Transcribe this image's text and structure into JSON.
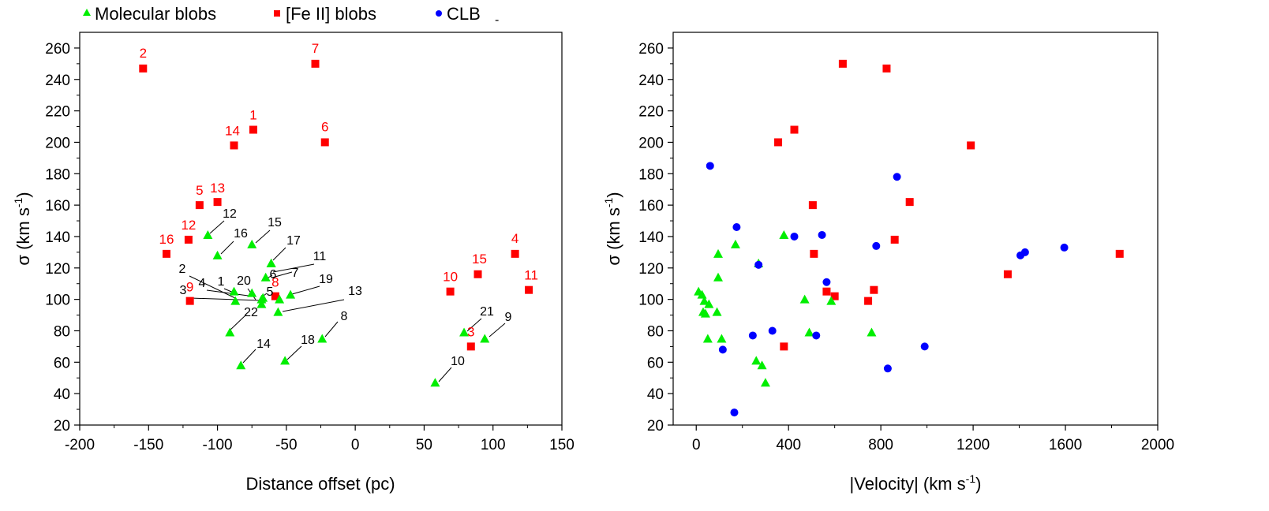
{
  "legend": {
    "molecular": "Molecular blobs",
    "feii": "[Fe II] blobs",
    "clb": "CLB",
    "extra": "-"
  },
  "colors": {
    "molecular": "#00ee00",
    "feii": "#ff0000",
    "clb": "#0000ff",
    "axis": "#000000"
  },
  "chart_data": [
    {
      "type": "scatter",
      "title": "",
      "xlabel": "Distance offset (pc)",
      "ylabel": "σ (km s-1)",
      "ylabel_main": "σ (km s",
      "ylabel_sup": "-1",
      "ylabel_end": ")",
      "xlim": [
        -200,
        150
      ],
      "ylim": [
        20,
        270
      ],
      "xticks": [
        -200,
        -150,
        -100,
        -50,
        0,
        50,
        100,
        150
      ],
      "yticks": [
        20,
        40,
        60,
        80,
        100,
        120,
        140,
        160,
        180,
        200,
        220,
        240,
        260
      ],
      "series": [
        {
          "name": "[Fe II] blobs",
          "marker": "square",
          "points": [
            {
              "x": -74,
              "y": 208,
              "label": "1"
            },
            {
              "x": -154,
              "y": 247,
              "label": "2"
            },
            {
              "x": 84,
              "y": 70,
              "label": "3"
            },
            {
              "x": 116,
              "y": 129,
              "label": "4"
            },
            {
              "x": -113,
              "y": 160,
              "label": "5"
            },
            {
              "x": -22,
              "y": 200,
              "label": "6"
            },
            {
              "x": -29,
              "y": 250,
              "label": "7"
            },
            {
              "x": -58,
              "y": 102,
              "label": "8"
            },
            {
              "x": -120,
              "y": 99,
              "label": "9"
            },
            {
              "x": 69,
              "y": 105,
              "label": "10"
            },
            {
              "x": 126,
              "y": 106,
              "label": "11"
            },
            {
              "x": -121,
              "y": 138,
              "label": "12"
            },
            {
              "x": -100,
              "y": 162,
              "label": "13"
            },
            {
              "x": -88,
              "y": 198,
              "label": "14"
            },
            {
              "x": 89,
              "y": 116,
              "label": "15"
            },
            {
              "x": -137,
              "y": 129,
              "label": "16"
            }
          ]
        },
        {
          "name": "Molecular blobs",
          "marker": "triangle",
          "points": [
            {
              "x": -88,
              "y": 105,
              "label": "1"
            },
            {
              "x": -87,
              "y": 99,
              "label": "2"
            },
            {
              "x": -68,
              "y": 100,
              "label": "3"
            },
            {
              "x": -75,
              "y": 104,
              "label": "4"
            },
            {
              "x": -68,
              "y": 97,
              "label": "5"
            },
            {
              "x": -65,
              "y": 114,
              "label": "6"
            },
            {
              "x": -55,
              "y": 100,
              "label": "7"
            },
            {
              "x": -24,
              "y": 75,
              "label": "8"
            },
            {
              "x": 94,
              "y": 75,
              "label": "9"
            },
            {
              "x": 58,
              "y": 47,
              "label": "10"
            },
            {
              "x": -61,
              "y": 123,
              "label": "11"
            },
            {
              "x": -107,
              "y": 141,
              "label": "12"
            },
            {
              "x": -56,
              "y": 92,
              "label": "13"
            },
            {
              "x": -83,
              "y": 58,
              "label": "14"
            },
            {
              "x": -75,
              "y": 135,
              "label": "15"
            },
            {
              "x": -100,
              "y": 128,
              "label": "16"
            },
            {
              "x": -61,
              "y": 123,
              "label": "17"
            },
            {
              "x": -51,
              "y": 61,
              "label": "18"
            },
            {
              "x": -47,
              "y": 103,
              "label": "19"
            },
            {
              "x": -67,
              "y": 101,
              "label": "20"
            },
            {
              "x": 79,
              "y": 79,
              "label": "21"
            },
            {
              "x": -91,
              "y": 79,
              "label": "22"
            }
          ]
        }
      ]
    },
    {
      "type": "scatter",
      "title": "",
      "xlabel": "|Velocity| (km s-1)",
      "xlabel_main": "|Velocity| (km s",
      "xlabel_sup": "-1",
      "xlabel_end": ")",
      "ylabel": "σ (km s-1)",
      "ylabel_main": "σ  (km s",
      "ylabel_sup": "-1",
      "ylabel_end": ")",
      "xlim": [
        -100,
        2000
      ],
      "ylim": [
        20,
        270
      ],
      "xticks": [
        0,
        400,
        800,
        1200,
        1600,
        2000
      ],
      "yticks": [
        20,
        40,
        60,
        80,
        100,
        120,
        140,
        160,
        180,
        200,
        220,
        240,
        260
      ],
      "series": [
        {
          "name": "[Fe II] blobs",
          "marker": "square",
          "points": [
            {
              "x": 635,
              "y": 250
            },
            {
              "x": 825,
              "y": 247
            },
            {
              "x": 425,
              "y": 208
            },
            {
              "x": 355,
              "y": 200
            },
            {
              "x": 1190,
              "y": 198
            },
            {
              "x": 505,
              "y": 160
            },
            {
              "x": 925,
              "y": 162
            },
            {
              "x": 860,
              "y": 138
            },
            {
              "x": 510,
              "y": 129
            },
            {
              "x": 1835,
              "y": 129
            },
            {
              "x": 1350,
              "y": 116
            },
            {
              "x": 565,
              "y": 105
            },
            {
              "x": 600,
              "y": 102
            },
            {
              "x": 770,
              "y": 106
            },
            {
              "x": 745,
              "y": 99
            },
            {
              "x": 380,
              "y": 70
            }
          ]
        },
        {
          "name": "Molecular blobs",
          "marker": "triangle",
          "points": [
            {
              "x": 10,
              "y": 105
            },
            {
              "x": 25,
              "y": 103
            },
            {
              "x": 35,
              "y": 99
            },
            {
              "x": 55,
              "y": 97
            },
            {
              "x": 30,
              "y": 92
            },
            {
              "x": 40,
              "y": 91
            },
            {
              "x": 90,
              "y": 92
            },
            {
              "x": 95,
              "y": 114
            },
            {
              "x": 95,
              "y": 129
            },
            {
              "x": 170,
              "y": 135
            },
            {
              "x": 270,
              "y": 123
            },
            {
              "x": 380,
              "y": 141
            },
            {
              "x": 50,
              "y": 75
            },
            {
              "x": 110,
              "y": 75
            },
            {
              "x": 285,
              "y": 58
            },
            {
              "x": 300,
              "y": 47
            },
            {
              "x": 260,
              "y": 61
            },
            {
              "x": 470,
              "y": 100
            },
            {
              "x": 490,
              "y": 79
            },
            {
              "x": 585,
              "y": 99
            },
            {
              "x": 760,
              "y": 79
            }
          ]
        },
        {
          "name": "CLB",
          "marker": "circle",
          "points": [
            {
              "x": 60,
              "y": 185
            },
            {
              "x": 175,
              "y": 146
            },
            {
              "x": 270,
              "y": 122
            },
            {
              "x": 425,
              "y": 140
            },
            {
              "x": 545,
              "y": 141
            },
            {
              "x": 565,
              "y": 111
            },
            {
              "x": 780,
              "y": 134
            },
            {
              "x": 870,
              "y": 178
            },
            {
              "x": 245,
              "y": 77
            },
            {
              "x": 330,
              "y": 80
            },
            {
              "x": 520,
              "y": 77
            },
            {
              "x": 115,
              "y": 68
            },
            {
              "x": 165,
              "y": 28
            },
            {
              "x": 830,
              "y": 56
            },
            {
              "x": 990,
              "y": 70
            },
            {
              "x": 1405,
              "y": 128
            },
            {
              "x": 1425,
              "y": 130
            },
            {
              "x": 1595,
              "y": 133
            }
          ]
        }
      ]
    }
  ]
}
